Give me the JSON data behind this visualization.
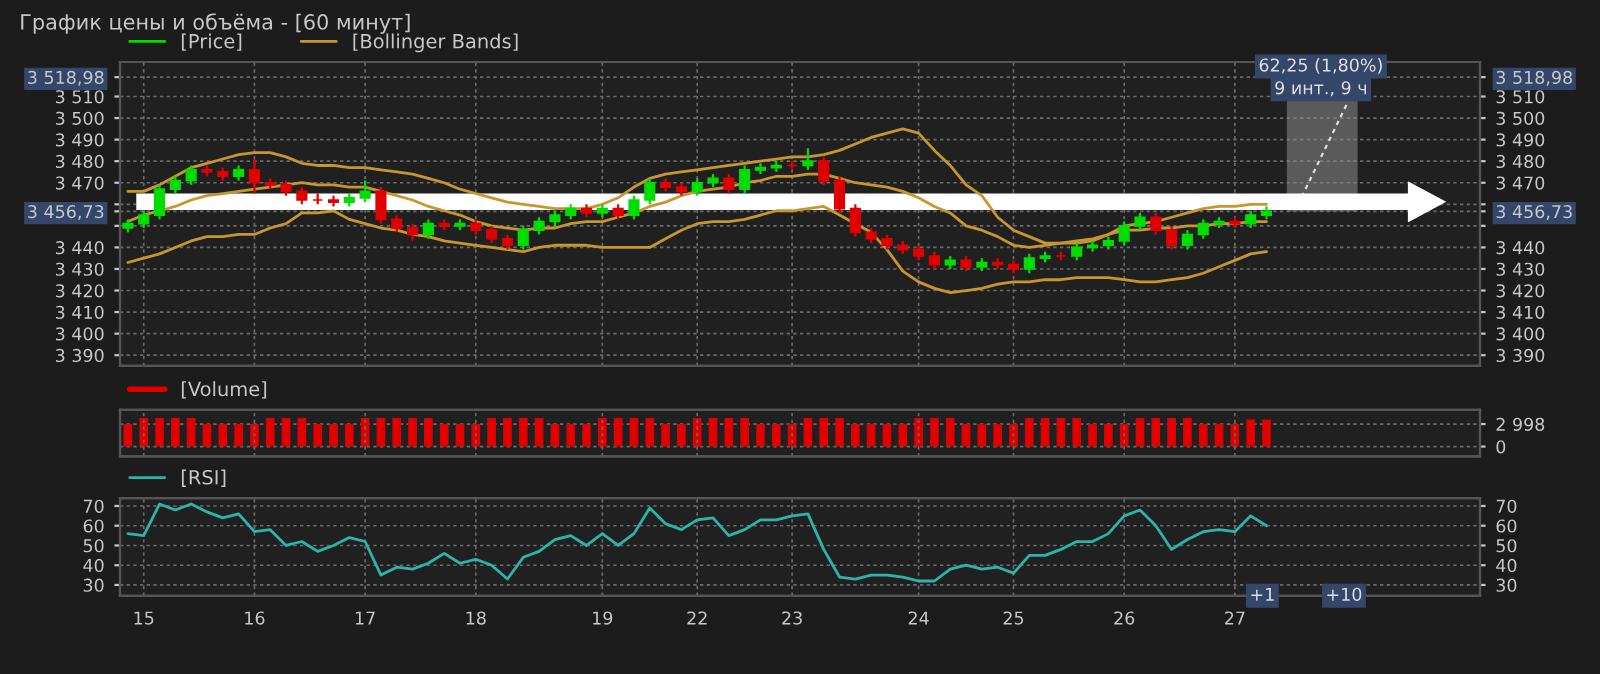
{
  "chart_data": [
    {
      "type": "candlestick",
      "title": "График цены и объёма - [60 минут]",
      "legend": "top left",
      "grid": true,
      "tick_labels": "y",
      "categories": [
        null,
        "15",
        null,
        null,
        null,
        null,
        null,
        null,
        "16",
        null,
        null,
        null,
        null,
        null,
        null,
        "17",
        null,
        null,
        null,
        null,
        null,
        null,
        "18",
        null,
        null,
        null,
        null,
        null,
        null,
        null,
        "19",
        null,
        null,
        null,
        null,
        null,
        "22",
        null,
        null,
        null,
        null,
        null,
        "23",
        null,
        null,
        null,
        null,
        null,
        null,
        null,
        "24",
        null,
        null,
        null,
        null,
        null,
        "25",
        null,
        null,
        null,
        null,
        null,
        null,
        "26",
        null,
        null,
        null,
        null,
        null,
        null,
        "27",
        null,
        null,
        null,
        null,
        null,
        null,
        null,
        null,
        null,
        null,
        null,
        null,
        null,
        null,
        null
      ],
      "ylim": [
        3385,
        3526
      ],
      "yticks": [
        {
          "value": 3390,
          "label": "3 390"
        },
        {
          "value": 3400,
          "label": "3 400"
        },
        {
          "value": 3410,
          "label": "3 410"
        },
        {
          "value": 3420,
          "label": "3 420"
        },
        {
          "value": 3430,
          "label": "3 430"
        },
        {
          "value": 3440,
          "label": "3 440"
        },
        {
          "value": 3450,
          "label": null
        },
        {
          "value": 3456.73,
          "label": "3 456,73"
        },
        {
          "value": 3460,
          "label": null
        },
        {
          "value": 3470,
          "label": "3 470"
        },
        {
          "value": 3480,
          "label": "3 480"
        },
        {
          "value": 3490,
          "label": "3 490"
        },
        {
          "value": 3500,
          "label": "3 500"
        },
        {
          "value": 3510,
          "label": "3 510"
        },
        {
          "value": 3518.98,
          "label": "3 518,98"
        }
      ],
      "y2lim": [
        3385,
        3526
      ],
      "y2ticks": [
        {
          "value": 3390,
          "label": "3 390"
        },
        {
          "value": 3400,
          "label": "3 400"
        },
        {
          "value": 3410,
          "label": "3 410"
        },
        {
          "value": 3420,
          "label": "3 420"
        },
        {
          "value": 3430,
          "label": "3 430"
        },
        {
          "value": 3440,
          "label": "3 440"
        },
        {
          "value": 3450,
          "label": null
        },
        {
          "value": 3456.73,
          "label": "3 456,73"
        },
        {
          "value": 3460,
          "label": null
        },
        {
          "value": 3470,
          "label": "3 470"
        },
        {
          "value": 3480,
          "label": "3 480"
        },
        {
          "value": 3490,
          "label": "3 490"
        },
        {
          "value": 3500,
          "label": "3 500"
        },
        {
          "value": 3510,
          "label": "3 510"
        },
        {
          "value": 3518.98,
          "label": "3 518,98"
        }
      ],
      "annotations": [
        "62,25 (1,80%)",
        "9 инт., 9 ч"
      ],
      "series": [
        {
          "type": "candlestick",
          "name": "[Price]",
          "color": "#00dd00",
          "ohlc": [
            [
              3449,
              3453,
              3447,
              3451
            ],
            [
              3451,
              3457,
              3449,
              3455
            ],
            [
              3455,
              3469,
              3453,
              3467
            ],
            [
              3467,
              3473,
              3465,
              3471
            ],
            [
              3471,
              3478,
              3469,
              3476
            ],
            [
              3476,
              3478,
              3473,
              3475
            ],
            [
              3475,
              3477,
              3471,
              3473
            ],
            [
              3473,
              3478,
              3471,
              3476
            ],
            [
              3476,
              3481,
              3465,
              3470
            ],
            [
              3470,
              3472,
              3467,
              3469
            ],
            [
              3469,
              3471,
              3464,
              3466
            ],
            [
              3466,
              3468,
              3460,
              3462
            ],
            [
              3462,
              3465,
              3460,
              3462
            ],
            [
              3462,
              3464,
              3459,
              3461
            ],
            [
              3461,
              3465,
              3459,
              3463
            ],
            [
              3463,
              3471,
              3461,
              3466
            ],
            [
              3466,
              3468,
              3451,
              3453
            ],
            [
              3453,
              3455,
              3447,
              3449
            ],
            [
              3449,
              3451,
              3443,
              3446
            ],
            [
              3446,
              3453,
              3444,
              3451
            ],
            [
              3451,
              3453,
              3448,
              3450
            ],
            [
              3450,
              3453,
              3448,
              3451
            ],
            [
              3451,
              3453,
              3446,
              3448
            ],
            [
              3448,
              3450,
              3442,
              3444
            ],
            [
              3444,
              3446,
              3439,
              3441
            ],
            [
              3441,
              3450,
              3439,
              3448
            ],
            [
              3448,
              3454,
              3446,
              3452
            ],
            [
              3452,
              3457,
              3450,
              3455
            ],
            [
              3455,
              3460,
              3453,
              3458
            ],
            [
              3458,
              3460,
              3454,
              3456
            ],
            [
              3456,
              3460,
              3454,
              3458
            ],
            [
              3458,
              3460,
              3453,
              3455
            ],
            [
              3455,
              3464,
              3453,
              3462
            ],
            [
              3462,
              3472,
              3460,
              3470
            ],
            [
              3470,
              3472,
              3466,
              3468
            ],
            [
              3468,
              3470,
              3464,
              3466
            ],
            [
              3466,
              3472,
              3464,
              3470
            ],
            [
              3470,
              3474,
              3468,
              3472
            ],
            [
              3472,
              3474,
              3465,
              3467
            ],
            [
              3467,
              3478,
              3465,
              3476
            ],
            [
              3476,
              3479,
              3474,
              3477
            ],
            [
              3477,
              3480,
              3475,
              3478
            ],
            [
              3478,
              3480,
              3476,
              3478
            ],
            [
              3478,
              3486,
              3476,
              3480
            ],
            [
              3480,
              3482,
              3469,
              3471
            ],
            [
              3471,
              3473,
              3456,
              3458
            ],
            [
              3458,
              3460,
              3445,
              3447
            ],
            [
              3447,
              3449,
              3442,
              3444
            ],
            [
              3444,
              3446,
              3439,
              3441
            ],
            [
              3441,
              3443,
              3437,
              3439
            ],
            [
              3439,
              3441,
              3434,
              3436
            ],
            [
              3436,
              3438,
              3430,
              3432
            ],
            [
              3432,
              3436,
              3430,
              3434
            ],
            [
              3434,
              3436,
              3429,
              3431
            ],
            [
              3431,
              3435,
              3429,
              3433
            ],
            [
              3433,
              3435,
              3430,
              3432
            ],
            [
              3432,
              3434,
              3428,
              3430
            ],
            [
              3430,
              3437,
              3428,
              3435
            ],
            [
              3435,
              3438,
              3433,
              3436
            ],
            [
              3436,
              3438,
              3434,
              3436
            ],
            [
              3436,
              3442,
              3434,
              3440
            ],
            [
              3440,
              3443,
              3438,
              3441
            ],
            [
              3441,
              3445,
              3439,
              3443
            ],
            [
              3443,
              3452,
              3441,
              3450
            ],
            [
              3450,
              3456,
              3448,
              3454
            ],
            [
              3454,
              3456,
              3446,
              3448
            ],
            [
              3448,
              3450,
              3439,
              3441
            ],
            [
              3441,
              3448,
              3439,
              3446
            ],
            [
              3446,
              3453,
              3444,
              3451
            ],
            [
              3451,
              3454,
              3449,
              3452
            ],
            [
              3452,
              3454,
              3449,
              3451
            ],
            [
              3451,
              3457,
              3449,
              3455
            ],
            [
              3455,
              3459,
              3453,
              3456.73
            ],
            null,
            null,
            null,
            null,
            null,
            null,
            null,
            null,
            null,
            null,
            null,
            null,
            null
          ],
          "colors": [
            "#00dd00",
            "#00dd00",
            "#00dd00",
            "#00dd00",
            "#00dd00",
            "#e00000",
            "#e00000",
            "#00dd00",
            "#e00000",
            "#e00000",
            "#e00000",
            "#e00000",
            "#e00000",
            "#e00000",
            "#00dd00",
            "#00dd00",
            "#e00000",
            "#e00000",
            "#e00000",
            "#00dd00",
            "#e00000",
            "#00dd00",
            "#e00000",
            "#e00000",
            "#e00000",
            "#00dd00",
            "#00dd00",
            "#00dd00",
            "#00dd00",
            "#e00000",
            "#00dd00",
            "#e00000",
            "#00dd00",
            "#00dd00",
            "#e00000",
            "#e00000",
            "#00dd00",
            "#00dd00",
            "#e00000",
            "#00dd00",
            "#00dd00",
            "#00dd00",
            "#e00000",
            "#00dd00",
            "#e00000",
            "#e00000",
            "#e00000",
            "#e00000",
            "#e00000",
            "#e00000",
            "#e00000",
            "#e00000",
            "#00dd00",
            "#e00000",
            "#00dd00",
            "#e00000",
            "#e00000",
            "#00dd00",
            "#00dd00",
            "#e00000",
            "#00dd00",
            "#00dd00",
            "#00dd00",
            "#00dd00",
            "#00dd00",
            "#e00000",
            "#e00000",
            "#00dd00",
            "#00dd00",
            "#00dd00",
            "#e00000",
            "#00dd00",
            "#00dd00",
            null,
            null,
            null,
            null,
            null,
            null,
            null,
            null,
            null,
            null,
            null,
            null,
            null
          ]
        },
        {
          "type": "line",
          "name": "[Bollinger Bands]",
          "color": "#c8962e",
          "values": [
            3466,
            3466,
            3469,
            3473,
            3477,
            3479,
            3481,
            3483,
            3484,
            3484,
            3482,
            3479,
            3478,
            3478,
            3477,
            3477,
            3476,
            3475,
            3474,
            3472,
            3470,
            3467,
            3465,
            3463,
            3461,
            3460,
            3459,
            3458,
            3458,
            3458,
            3460,
            3463,
            3468,
            3472,
            3474,
            3475,
            3476,
            3477,
            3478,
            3479,
            3480,
            3481,
            3482,
            3482,
            3483,
            3485,
            3488,
            3491,
            3493,
            3495,
            3493,
            3485,
            3478,
            3469,
            3464,
            3454,
            3448,
            3445,
            3442,
            3442,
            3442,
            3443,
            3446,
            3450,
            3451,
            3452,
            3454,
            3456,
            3458,
            3459,
            3459,
            3460,
            3460,
            null,
            null,
            null,
            null,
            null,
            null,
            null,
            null,
            null,
            null,
            null,
            null,
            null
          ]
        },
        {
          "type": "line",
          "color": "#c8962e",
          "values": [
            3452,
            3455,
            3457,
            3459,
            3462,
            3464,
            3465,
            3466,
            3467,
            3468,
            3469,
            3470,
            3469,
            3469,
            3468,
            3468,
            3466,
            3464,
            3462,
            3459,
            3457,
            3455,
            3452,
            3450,
            3449,
            3448,
            3449,
            3449,
            3451,
            3452,
            3452,
            3454,
            3456,
            3459,
            3461,
            3464,
            3466,
            3467,
            3468,
            3470,
            3471,
            3473,
            3473,
            3474,
            3474,
            3472,
            3470,
            3469,
            3468,
            3466,
            3463,
            3459,
            3456,
            3450,
            3448,
            3445,
            3441,
            3440,
            3441,
            3442,
            3443,
            3444,
            3446,
            3448,
            3448,
            3449,
            3449,
            3450,
            3450,
            3451,
            3451,
            3452,
            3452,
            null,
            null,
            null,
            null,
            null,
            null,
            null,
            null,
            null,
            null,
            null,
            null,
            null
          ]
        },
        {
          "type": "line",
          "color": "#c8962e",
          "values": [
            3433,
            3435,
            3437,
            3440,
            3443,
            3445,
            3445,
            3446,
            3446,
            3449,
            3451,
            3456,
            3456,
            3457,
            3453,
            3451,
            3449,
            3448,
            3446,
            3445,
            3443,
            3442,
            3441,
            3440,
            3439,
            3438,
            3440,
            3441,
            3441,
            3441,
            3440,
            3440,
            3440,
            3440,
            3444,
            3448,
            3451,
            3452,
            3452,
            3453,
            3455,
            3457,
            3457,
            3458,
            3459,
            3455,
            3451,
            3447,
            3439,
            3429,
            3424,
            3421,
            3419,
            3420,
            3421,
            3423,
            3424,
            3424,
            3425,
            3425,
            3426,
            3426,
            3426,
            3425,
            3424,
            3424,
            3425,
            3426,
            3428,
            3431,
            3434,
            3437,
            3438,
            null,
            null,
            null,
            null,
            null,
            null,
            null,
            null,
            null,
            null,
            null,
            null,
            null
          ]
        }
      ]
    },
    {
      "type": "bar",
      "legend": "top left",
      "grid": true,
      "tick_labels": "y",
      "categories": [
        null,
        "15",
        null,
        null,
        null,
        null,
        null,
        null,
        "16",
        null,
        null,
        null,
        null,
        null,
        null,
        "17",
        null,
        null,
        null,
        null,
        null,
        null,
        "18",
        null,
        null,
        null,
        null,
        null,
        null,
        null,
        "19",
        null,
        null,
        null,
        null,
        null,
        "22",
        null,
        null,
        null,
        null,
        null,
        "23",
        null,
        null,
        null,
        null,
        null,
        null,
        null,
        "24",
        null,
        null,
        null,
        null,
        null,
        "25",
        null,
        null,
        null,
        null,
        null,
        null,
        "26",
        null,
        null,
        null,
        null,
        null,
        null,
        "27",
        null,
        null,
        null,
        null,
        null,
        null,
        null,
        null,
        null,
        null,
        null,
        null,
        null,
        null,
        null
      ],
      "y2lim": [
        -1300,
        4900
      ],
      "y2ticks": [
        0,
        {
          "value": 2998,
          "label": "2 998"
        }
      ],
      "series": [
        {
          "name": "[Volume]",
          "color": "#e00000",
          "axis": "y2",
          "values": [
            3000,
            3800,
            3800,
            3800,
            3800,
            3000,
            3000,
            3000,
            3000,
            3800,
            3800,
            3800,
            3000,
            3000,
            3000,
            3800,
            3800,
            3800,
            3800,
            3800,
            3000,
            3000,
            3000,
            3800,
            3800,
            3800,
            3800,
            3000,
            3000,
            3000,
            3800,
            3800,
            3800,
            3800,
            3000,
            3000,
            3800,
            3800,
            3800,
            3800,
            3000,
            3000,
            3000,
            3800,
            3800,
            3800,
            3000,
            3000,
            3000,
            3000,
            3800,
            3800,
            3800,
            3000,
            3000,
            3000,
            3000,
            3800,
            3800,
            3800,
            3800,
            3000,
            3000,
            3000,
            3800,
            3800,
            3800,
            3800,
            3000,
            3000,
            3000,
            3600,
            3600,
            null,
            null,
            null,
            null,
            null,
            null,
            null,
            null,
            null,
            null,
            null,
            null,
            null
          ]
        }
      ]
    },
    {
      "type": "line",
      "legend": "top left",
      "grid": true,
      "categories": [
        null,
        "15",
        null,
        null,
        null,
        null,
        null,
        null,
        "16",
        null,
        null,
        null,
        null,
        null,
        null,
        "17",
        null,
        null,
        null,
        null,
        null,
        null,
        "18",
        null,
        null,
        null,
        null,
        null,
        null,
        null,
        "19",
        null,
        null,
        null,
        null,
        null,
        "22",
        null,
        null,
        null,
        null,
        null,
        "23",
        null,
        null,
        null,
        null,
        null,
        null,
        null,
        "24",
        null,
        null,
        null,
        null,
        null,
        "25",
        null,
        null,
        null,
        null,
        null,
        null,
        "26",
        null,
        null,
        null,
        null,
        null,
        null,
        "27",
        null,
        null,
        null,
        null,
        null,
        null,
        null,
        null,
        null,
        null,
        null,
        null,
        null,
        null,
        null
      ],
      "ylim": [
        24.5,
        74
      ],
      "yticks": [
        30,
        40,
        50,
        60,
        70
      ],
      "y2lim": [
        24.5,
        74
      ],
      "y2ticks": [
        30,
        40,
        50,
        60,
        70
      ],
      "annotations": [
        "+1",
        "+10"
      ],
      "series": [
        {
          "name": "[RSI]",
          "color": "#2ab5a8",
          "values": [
            56,
            55,
            71,
            68,
            71,
            67,
            64,
            66,
            57,
            58,
            50,
            52,
            47,
            50,
            54,
            52,
            35,
            39,
            38,
            41,
            46,
            41,
            43,
            40,
            33,
            44,
            47,
            53,
            55,
            50,
            56,
            50,
            56,
            69,
            61,
            58,
            63,
            64,
            55,
            58,
            63,
            63,
            65,
            66,
            48,
            34,
            33,
            35,
            35,
            34,
            32,
            32,
            38,
            40,
            38,
            39,
            36,
            45,
            45,
            48,
            52,
            52,
            56,
            65,
            68,
            60,
            48,
            53,
            57,
            58,
            57,
            65,
            60,
            null,
            null,
            null,
            null,
            null,
            null,
            null,
            null,
            null,
            null,
            null,
            null,
            null
          ]
        }
      ]
    }
  ]
}
